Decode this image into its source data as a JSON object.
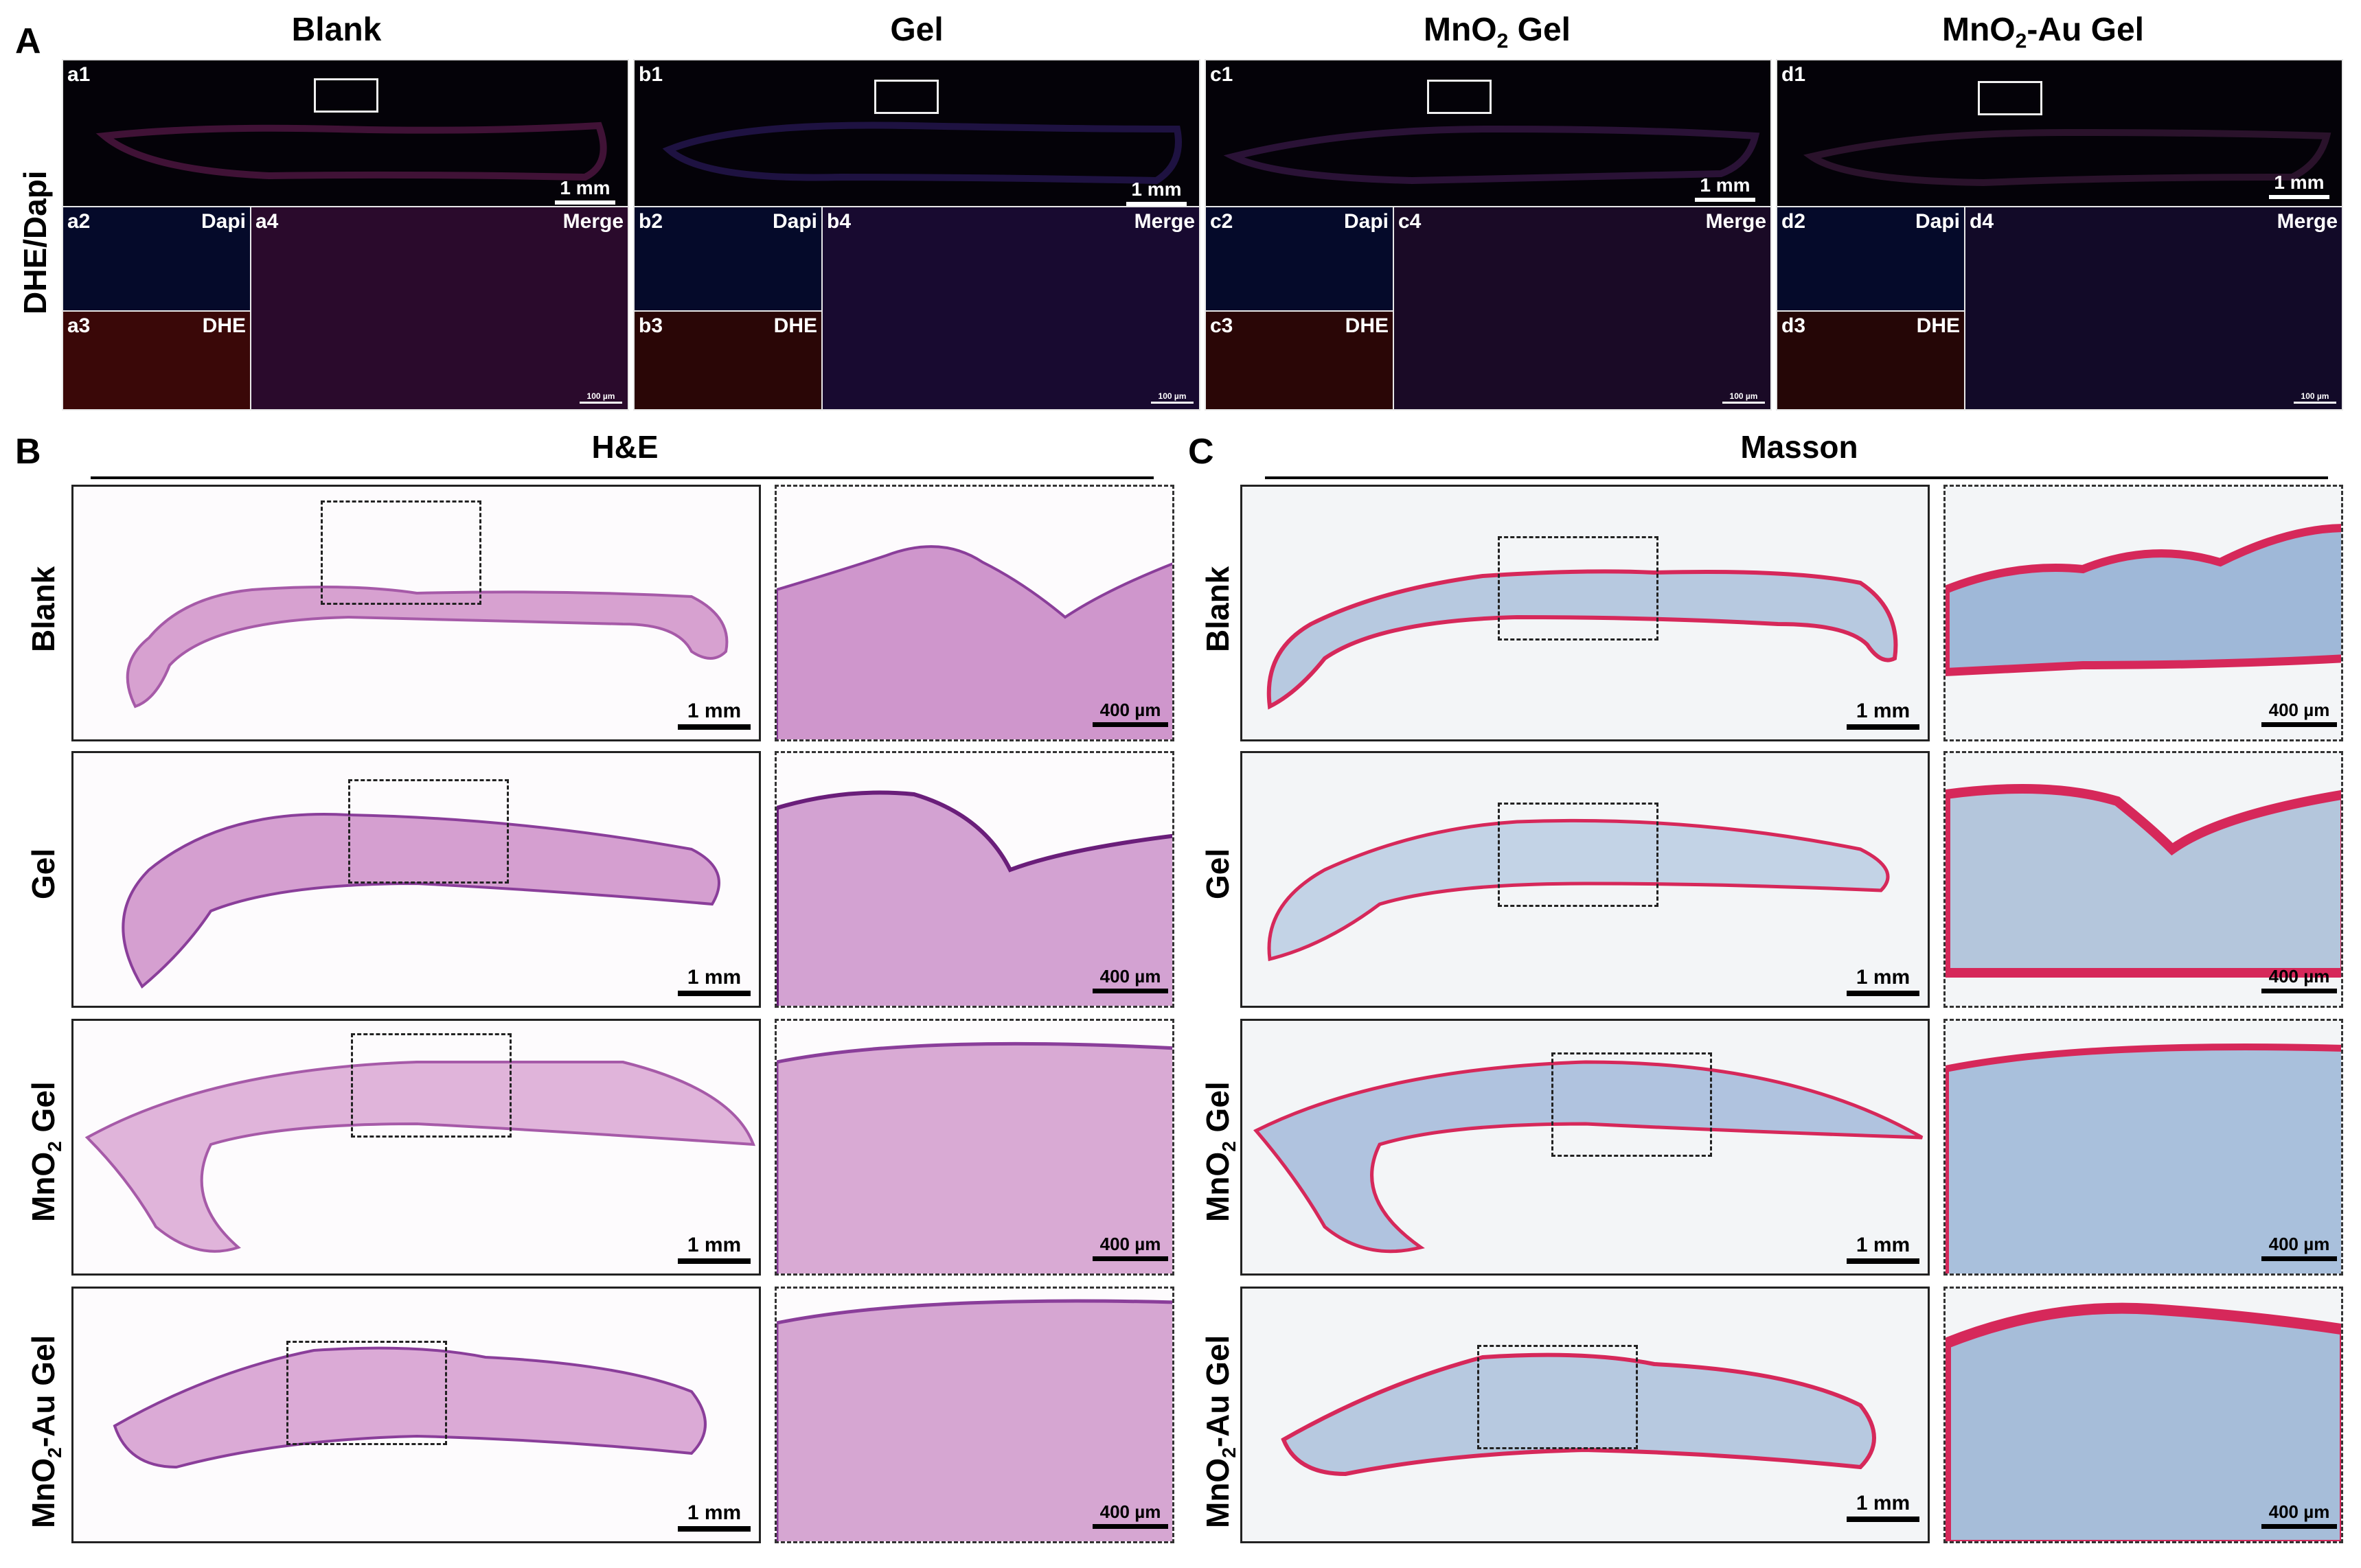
{
  "panel_A": {
    "letter": "A",
    "side_label": "DHE/Dapi",
    "columns": [
      {
        "title": "Blank",
        "sub": "",
        "title_rest": "",
        "prefix": "a"
      },
      {
        "title": "Gel",
        "sub": "",
        "title_rest": "",
        "prefix": "b"
      },
      {
        "title": "MnO",
        "sub": "2",
        "title_rest": " Gel",
        "prefix": "c"
      },
      {
        "title": "MnO",
        "sub": "2",
        "title_rest": "-Au Gel",
        "prefix": "d"
      }
    ],
    "tile_labels": {
      "a1": "a1",
      "a2": "a2",
      "a3": "a3",
      "a4": "a4",
      "b1": "b1",
      "b2": "b2",
      "b3": "b3",
      "b4": "b4",
      "c1": "c1",
      "c2": "c2",
      "c3": "c3",
      "c4": "c4",
      "d1": "d1",
      "d2": "d2",
      "d3": "d3",
      "d4": "d4"
    },
    "channel_dapi": "Dapi",
    "channel_dhe": "DHE",
    "channel_merge": "Merge",
    "scale_overview": "1 mm",
    "scale_detail": "100 µm",
    "colors": {
      "dapi": "#1a2aa8",
      "dhe": "#b01818",
      "merge": "#8a2a8a"
    }
  },
  "panel_B": {
    "letter": "B",
    "header": "H&E",
    "rows": [
      {
        "label": "Blank",
        "sub": "",
        "rest": ""
      },
      {
        "label": "Gel",
        "sub": "",
        "rest": ""
      },
      {
        "label": "MnO",
        "sub": "2",
        "rest": " Gel"
      },
      {
        "label": "MnO",
        "sub": "2",
        "rest": "-Au Gel"
      }
    ],
    "scale_overview": "1 mm",
    "scale_detail": "400 µm",
    "colors": {
      "tissue": "#c98ac4",
      "epidermis": "#8a3e9a",
      "background": "#fbf6fa"
    }
  },
  "panel_C": {
    "letter": "C",
    "header": "Masson",
    "rows": [
      {
        "label": "Blank",
        "sub": "",
        "rest": ""
      },
      {
        "label": "Gel",
        "sub": "",
        "rest": ""
      },
      {
        "label": "MnO",
        "sub": "2",
        "rest": " Gel"
      },
      {
        "label": "MnO",
        "sub": "2",
        "rest": "-Au Gel"
      }
    ],
    "scale_overview": "1 mm",
    "scale_detail": "400 µm",
    "colors": {
      "collagen": "#9fb8d8",
      "keratin": "#d6285a",
      "background": "#f3f5f7"
    }
  }
}
